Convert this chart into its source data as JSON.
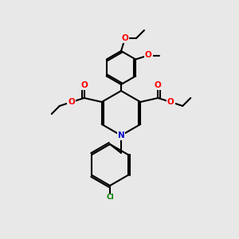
{
  "bg_color": "#e8e8e8",
  "bond_color": "#000000",
  "bond_width": 1.5,
  "atom_colors": {
    "O": "#ff0000",
    "N": "#0000cc",
    "Cl": "#008000",
    "C": "#000000"
  },
  "font_size_atom": 7.5,
  "font_size_small": 6.5
}
